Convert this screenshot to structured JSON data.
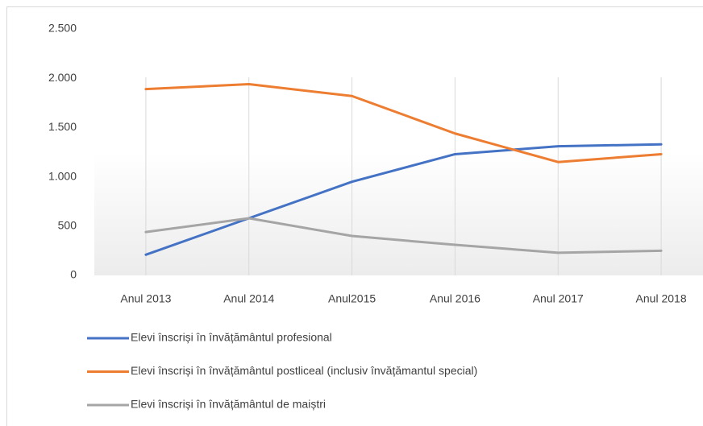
{
  "chart_data": {
    "type": "line",
    "categories": [
      "Anul 2013",
      "Anul 2014",
      "Anul2015",
      "Anul 2016",
      "Anul 2017",
      "Anul 2018"
    ],
    "series": [
      {
        "name": "Elevi înscriși în învățământul profesional",
        "color": "#4472c4",
        "values": [
          210,
          580,
          950,
          1230,
          1310,
          1330
        ]
      },
      {
        "name": "Elevi înscriși în învățământul postliceal (inclusiv învățămantul special)",
        "color": "#ed7d31",
        "values": [
          1890,
          1940,
          1820,
          1440,
          1150,
          1230
        ]
      },
      {
        "name": "Elevi înscriși în învățământul de maiștri",
        "color": "#a5a5a5",
        "values": [
          440,
          580,
          400,
          310,
          230,
          250
        ]
      }
    ],
    "ylim": [
      0,
      2500
    ],
    "yticks": [
      0,
      500,
      {
        "value": 1000,
        "label": "1.000"
      },
      {
        "value": 1500,
        "label": "1.500"
      },
      {
        "value": 2000,
        "label": "2.000"
      },
      {
        "value": 2500,
        "label": "2.500"
      }
    ],
    "grid": "x",
    "legend": "bottom-left"
  }
}
